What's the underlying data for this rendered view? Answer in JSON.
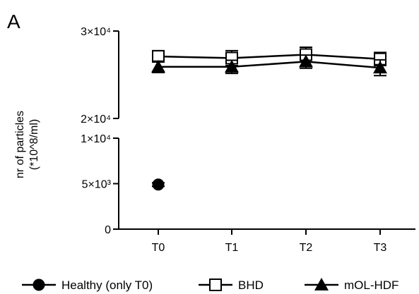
{
  "chart_data": {
    "type": "line",
    "panel_label": "A",
    "ylabel": "nr of particles",
    "ylabel_unit": "(*10^8/ml)",
    "categories": [
      "T0",
      "T1",
      "T2",
      "T3"
    ],
    "y_axis": {
      "broken": true,
      "lower_segment": {
        "range": [
          0,
          10000
        ],
        "ticks": [
          0,
          5000,
          10000
        ],
        "tick_labels": [
          "0",
          "5×10³",
          "1×10⁴"
        ]
      },
      "upper_segment": {
        "range": [
          20000,
          30000
        ],
        "ticks": [
          20000,
          30000
        ],
        "tick_labels": [
          "2×10⁴",
          "3×10⁴"
        ]
      }
    },
    "series": [
      {
        "name": "Healthy (only T0)",
        "marker": "filled-circle",
        "connected": false,
        "values": [
          4900,
          null,
          null,
          null
        ],
        "errors": [
          200,
          null,
          null,
          null
        ]
      },
      {
        "name": "BHD",
        "marker": "open-square",
        "connected": true,
        "values": [
          27100,
          26900,
          27300,
          26800
        ],
        "errors": [
          650,
          850,
          850,
          750
        ]
      },
      {
        "name": "mOL-HDF",
        "marker": "filled-triangle",
        "connected": true,
        "values": [
          25900,
          25900,
          26500,
          25800
        ],
        "errors": [
          650,
          750,
          750,
          900
        ]
      }
    ],
    "grid": false,
    "legend_position": "bottom"
  }
}
